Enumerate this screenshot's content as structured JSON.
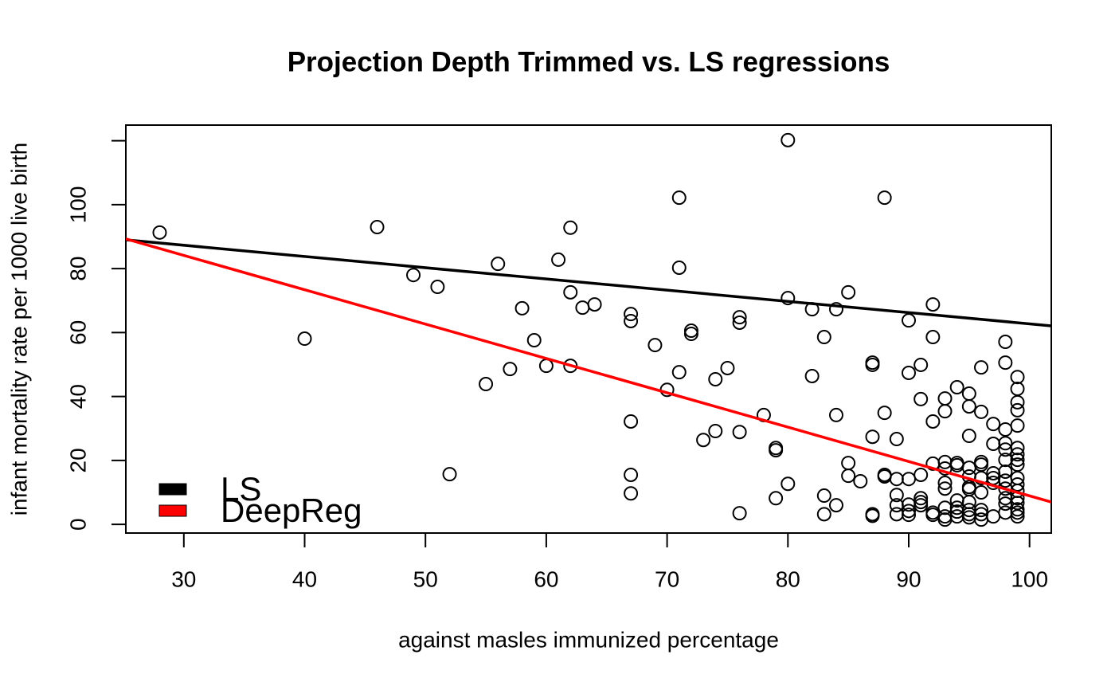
{
  "chart_data": {
    "type": "scatter",
    "title": "Projection Depth Trimmed vs. LS regressions",
    "xlabel": "against masles immunized percentage",
    "ylabel": "infant mortality rate per 1000 live birth",
    "xlim": [
      25.2,
      101.8
    ],
    "ylim": [
      -2.7,
      124.9
    ],
    "xticks": [
      30,
      40,
      50,
      60,
      70,
      80,
      90,
      100
    ],
    "yticks": [
      0,
      20,
      40,
      60,
      80,
      100,
      {
        "value": 120,
        "label": null
      }
    ],
    "point_color": "#000000",
    "x": [
      28,
      40,
      46,
      49,
      51,
      52,
      55,
      56,
      57,
      58,
      59,
      60,
      61,
      62,
      62,
      62,
      63,
      64,
      67,
      67,
      67,
      67,
      67,
      69,
      70,
      71,
      71,
      71,
      72,
      72,
      73,
      74,
      74,
      75,
      76,
      76,
      76,
      76,
      78,
      79,
      79,
      79,
      80,
      80,
      80,
      82,
      82,
      83,
      83,
      83,
      84,
      84,
      84,
      85,
      85,
      85,
      86,
      87,
      87,
      87,
      87,
      87,
      88,
      88,
      88,
      88,
      89,
      89,
      89,
      89,
      89,
      90,
      90,
      90,
      90,
      90,
      90,
      91,
      91,
      91,
      91,
      91,
      91,
      92,
      92,
      92,
      92,
      92,
      92,
      93,
      93,
      93,
      93,
      93,
      93,
      93,
      93,
      93,
      94,
      94,
      94,
      94,
      94,
      94,
      94,
      95,
      95,
      95,
      95,
      95,
      95,
      95,
      95,
      95,
      95,
      95,
      96,
      96,
      96,
      96,
      96,
      96,
      96,
      96,
      96,
      97,
      97,
      97,
      97,
      97,
      97,
      98,
      98,
      98,
      98,
      98,
      98,
      98,
      98,
      98,
      98,
      98,
      98,
      99,
      99,
      99,
      99,
      99,
      99,
      99,
      99,
      99,
      99,
      99,
      99,
      99,
      99,
      99,
      99,
      99
    ],
    "y": [
      91.3,
      58.1,
      93,
      78,
      74.3,
      15.7,
      43.9,
      81.5,
      48.6,
      67.6,
      57.6,
      49.6,
      82.8,
      92.8,
      72.6,
      49.6,
      67.8,
      68.8,
      65.8,
      63.6,
      32.2,
      15.5,
      9.7,
      56.1,
      42.1,
      102.2,
      80.3,
      47.6,
      60.6,
      59.6,
      26.4,
      45.4,
      29.2,
      48.9,
      64.8,
      63.1,
      28.9,
      3.5,
      34.2,
      23.9,
      23.2,
      8.2,
      120.2,
      70.8,
      12.7,
      67.3,
      46.4,
      58.6,
      9,
      3.2,
      67.3,
      34.2,
      6,
      72.6,
      19.2,
      15.2,
      13.5,
      50.6,
      49.9,
      27.4,
      3.2,
      2.7,
      102.2,
      34.9,
      15.5,
      15,
      26.7,
      14.2,
      9.2,
      6,
      3.2,
      63.8,
      47.4,
      14.2,
      6.2,
      4.2,
      3,
      49.9,
      39.2,
      15.5,
      8.2,
      7,
      6,
      68.8,
      58.6,
      32.2,
      19,
      3.7,
      3,
      39.4,
      35.4,
      19.5,
      17.5,
      13,
      11.2,
      5.2,
      2.5,
      1.5,
      42.9,
      19.2,
      18.5,
      7.5,
      5.2,
      4,
      2.5,
      40.9,
      36.9,
      27.7,
      17.7,
      15,
      11.7,
      11,
      7,
      4.5,
      3.2,
      2.2,
      49.1,
      35.2,
      19.5,
      18.7,
      14.5,
      10,
      4.5,
      3.2,
      1.5,
      31.4,
      25.2,
      16,
      14.5,
      13,
      2.5,
      57.1,
      50.6,
      29.7,
      25.4,
      23.4,
      20.2,
      16.5,
      13.7,
      11.2,
      8.2,
      6.5,
      3.7,
      46.1,
      42.4,
      38.2,
      35.7,
      30.9,
      23.9,
      21.9,
      20.2,
      18.7,
      14.5,
      12.5,
      10.5,
      8.2,
      6.7,
      4.7,
      3.7,
      2.5
    ],
    "lines": [
      {
        "name": "LS",
        "color": "#000000",
        "x": [
          25.2,
          101.8
        ],
        "y": [
          89.0,
          62.1
        ]
      },
      {
        "name": "DeepReg",
        "color": "#ff0000",
        "x": [
          25.2,
          101.8
        ],
        "y": [
          89.3,
          7.0
        ]
      }
    ],
    "legend": "bottomleft"
  }
}
